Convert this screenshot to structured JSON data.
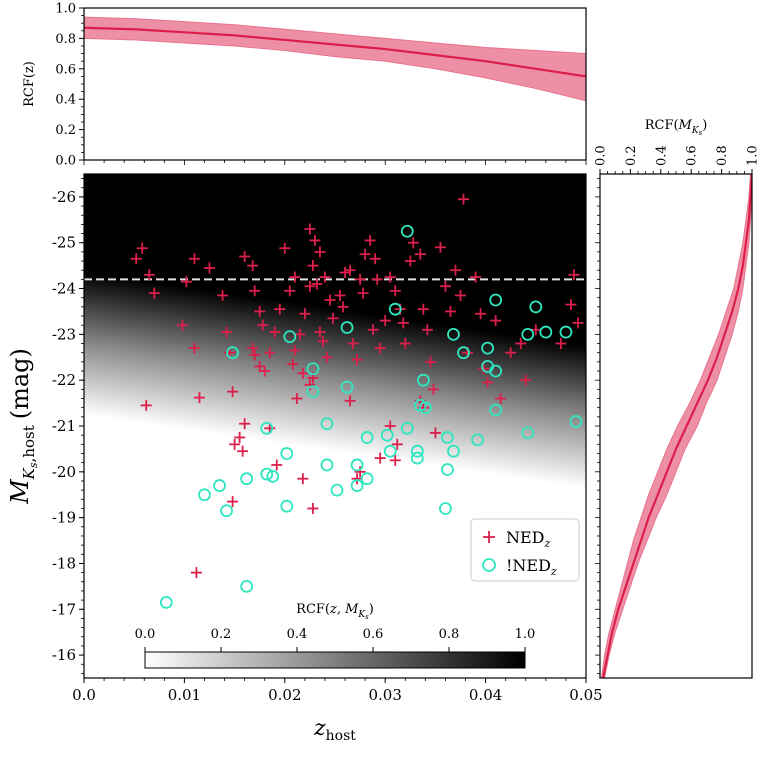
{
  "chart_data": [
    {
      "panel": "top-marginal",
      "type": "line",
      "ylabel": "RCF(z)",
      "xlim": [
        0.0,
        0.05
      ],
      "ylim": [
        0.0,
        1.0
      ],
      "yticks": [
        "0.0",
        "0.2",
        "0.4",
        "0.6",
        "0.8",
        "1.0"
      ],
      "x": [
        0.0,
        0.005,
        0.01,
        0.015,
        0.02,
        0.025,
        0.03,
        0.035,
        0.04,
        0.045,
        0.05
      ],
      "series": [
        {
          "values": [
            0.87,
            0.86,
            0.84,
            0.82,
            0.79,
            0.76,
            0.73,
            0.69,
            0.65,
            0.6,
            0.55
          ]
        }
      ],
      "band_upper": [
        0.94,
        0.93,
        0.91,
        0.89,
        0.86,
        0.83,
        0.8,
        0.77,
        0.74,
        0.72,
        0.7
      ],
      "band_lower": [
        0.8,
        0.79,
        0.77,
        0.75,
        0.72,
        0.68,
        0.65,
        0.6,
        0.54,
        0.47,
        0.39
      ],
      "line_color": "#dc1f4a",
      "band_color": "#e8738e"
    },
    {
      "panel": "right-marginal",
      "type": "line",
      "xlabel": "RCF(",
      "xlabel_var": "M",
      "xlabel_sub": "K",
      "xlabel_subsub": "s",
      "xlim": [
        0.0,
        1.0
      ],
      "xticks": [
        "0.0",
        "0.2",
        "0.4",
        "0.6",
        "0.8",
        "1.0"
      ],
      "y": [
        -26.5,
        -26.0,
        -25.5,
        -25.0,
        -24.5,
        -24.0,
        -23.5,
        -23.0,
        -22.5,
        -22.0,
        -21.5,
        -21.0,
        -20.5,
        -20.0,
        -19.5,
        -19.0,
        -18.5,
        -18.0,
        -17.5,
        -17.0,
        -16.5,
        -16.0,
        -15.5
      ],
      "series": [
        {
          "values": [
            1.0,
            0.99,
            0.98,
            0.96,
            0.94,
            0.91,
            0.87,
            0.82,
            0.77,
            0.71,
            0.64,
            0.57,
            0.5,
            0.44,
            0.38,
            0.32,
            0.27,
            0.22,
            0.17,
            0.12,
            0.08,
            0.05,
            0.02
          ]
        }
      ],
      "band_upper": [
        1.0,
        1.0,
        0.99,
        0.98,
        0.96,
        0.94,
        0.91,
        0.87,
        0.82,
        0.77,
        0.7,
        0.64,
        0.56,
        0.5,
        0.44,
        0.37,
        0.31,
        0.25,
        0.2,
        0.15,
        0.1,
        0.06,
        0.03
      ],
      "band_lower": [
        0.99,
        0.98,
        0.96,
        0.94,
        0.91,
        0.88,
        0.83,
        0.78,
        0.72,
        0.66,
        0.59,
        0.51,
        0.44,
        0.38,
        0.32,
        0.27,
        0.22,
        0.18,
        0.14,
        0.1,
        0.06,
        0.03,
        0.01
      ]
    },
    {
      "panel": "main",
      "type": "scatter",
      "xlabel": "z",
      "xlabel_sub": "host",
      "ylabel_var": "M",
      "ylabel_sub": "K",
      "ylabel_subsub": "s",
      "ylabel_sub2": ",host",
      "ylabel_unit": "(mag)",
      "xlim": [
        0.0,
        0.05
      ],
      "ylim": [
        -26.5,
        -15.5
      ],
      "xticks": [
        "0.0",
        "0.01",
        "0.02",
        "0.03",
        "0.04",
        "0.05"
      ],
      "yticks": [
        {
          "label": "-26",
          "value": -26
        },
        {
          "label": "-25",
          "value": -25
        },
        {
          "label": "-24",
          "value": -24
        },
        {
          "label": "-23",
          "value": -23
        },
        {
          "label": "-22",
          "value": -22
        },
        {
          "label": "-21",
          "value": -21
        },
        {
          "label": "-20",
          "value": -20
        },
        {
          "label": "-19",
          "value": -19
        },
        {
          "label": "-18",
          "value": -18
        },
        {
          "label": "-17",
          "value": -17
        },
        {
          "label": "-16",
          "value": -16
        }
      ],
      "dashed_line_y": -24.2,
      "background": "heatmap of RCF(z, M_Ks): black (1.0) for bright magnitudes, white (0.0) for faint, boundary sloping from about -21 at z=0 to about -23 at z=0.05",
      "colorbar": {
        "label": "RCF(",
        "label_var": "M",
        "label_sub": "K",
        "label_subsub": "s",
        "ticks": [
          "0.0",
          "0.2",
          "0.4",
          "0.6",
          "0.8",
          "1.0"
        ],
        "range": [
          0.0,
          1.0
        ]
      },
      "legend": {
        "placement": "lower-right",
        "items": [
          {
            "label": "NED",
            "sub": "z",
            "marker": "plus",
            "color": "#dc1f4a"
          },
          {
            "label": "!NED",
            "sub": "z",
            "marker": "circle",
            "color": "#2ee6c0"
          }
        ]
      },
      "series": [
        {
          "marker": "plus",
          "color": "#dc1f4a",
          "points": [
            [
              0.0052,
              -24.65
            ],
            [
              0.0058,
              -24.88
            ],
            [
              0.0065,
              -24.3
            ],
            [
              0.007,
              -23.9
            ],
            [
              0.0062,
              -21.45
            ],
            [
              0.0098,
              -23.2
            ],
            [
              0.0102,
              -24.15
            ],
            [
              0.011,
              -24.65
            ],
            [
              0.011,
              -22.7
            ],
            [
              0.0115,
              -21.62
            ],
            [
              0.0125,
              -24.45
            ],
            [
              0.0138,
              -23.85
            ],
            [
              0.0142,
              -23.05
            ],
            [
              0.0145,
              -22.6
            ],
            [
              0.0148,
              -21.75
            ],
            [
              0.015,
              -20.6
            ],
            [
              0.0155,
              -20.75
            ],
            [
              0.016,
              -21.05
            ],
            [
              0.0158,
              -20.45
            ],
            [
              0.0148,
              -19.35
            ],
            [
              0.016,
              -24.7
            ],
            [
              0.0168,
              -24.5
            ],
            [
              0.017,
              -23.95
            ],
            [
              0.0175,
              -23.5
            ],
            [
              0.0178,
              -23.2
            ],
            [
              0.0168,
              -22.7
            ],
            [
              0.017,
              -22.55
            ],
            [
              0.0175,
              -22.3
            ],
            [
              0.018,
              -22.2
            ],
            [
              0.019,
              -23.05
            ],
            [
              0.0185,
              -22.6
            ],
            [
              0.0195,
              -23.55
            ],
            [
              0.02,
              -24.88
            ],
            [
              0.0205,
              -23.95
            ],
            [
              0.021,
              -24.25
            ],
            [
              0.0215,
              -23.0
            ],
            [
              0.021,
              -22.65
            ],
            [
              0.0208,
              -22.35
            ],
            [
              0.0218,
              -22.15
            ],
            [
              0.0212,
              -21.6
            ],
            [
              0.022,
              -23.45
            ],
            [
              0.0225,
              -24.05
            ],
            [
              0.0225,
              -25.3
            ],
            [
              0.023,
              -25.05
            ],
            [
              0.0235,
              -24.8
            ],
            [
              0.0228,
              -24.5
            ],
            [
              0.0232,
              -24.1
            ],
            [
              0.024,
              -24.25
            ],
            [
              0.0245,
              -23.75
            ],
            [
              0.0248,
              -23.35
            ],
            [
              0.0235,
              -23.05
            ],
            [
              0.0238,
              -22.85
            ],
            [
              0.0242,
              -22.5
            ],
            [
              0.0228,
              -22.05
            ],
            [
              0.0225,
              -21.9
            ],
            [
              0.0255,
              -23.85
            ],
            [
              0.026,
              -24.35
            ],
            [
              0.0265,
              -24.4
            ],
            [
              0.0258,
              -23.6
            ],
            [
              0.0268,
              -22.8
            ],
            [
              0.0272,
              -22.45
            ],
            [
              0.0275,
              -24.2
            ],
            [
              0.0278,
              -23.9
            ],
            [
              0.028,
              -24.75
            ],
            [
              0.0285,
              -25.05
            ],
            [
              0.029,
              -24.65
            ],
            [
              0.0292,
              -24.2
            ],
            [
              0.0288,
              -23.1
            ],
            [
              0.0295,
              -22.7
            ],
            [
              0.03,
              -23.3
            ],
            [
              0.0305,
              -24.25
            ],
            [
              0.031,
              -23.95
            ],
            [
              0.0315,
              -23.55
            ],
            [
              0.0318,
              -23.25
            ],
            [
              0.032,
              -22.8
            ],
            [
              0.0325,
              -24.6
            ],
            [
              0.0328,
              -25.0
            ],
            [
              0.0335,
              -24.75
            ],
            [
              0.0338,
              -23.55
            ],
            [
              0.0342,
              -23.1
            ],
            [
              0.0345,
              -22.4
            ],
            [
              0.0348,
              -21.8
            ],
            [
              0.0335,
              -21.55
            ],
            [
              0.0338,
              -21.4
            ],
            [
              0.035,
              -20.85
            ],
            [
              0.0355,
              -24.9
            ],
            [
              0.036,
              -24.05
            ],
            [
              0.0365,
              -23.5
            ],
            [
              0.037,
              -24.4
            ],
            [
              0.0375,
              -23.85
            ],
            [
              0.0378,
              -25.95
            ],
            [
              0.0382,
              -22.6
            ],
            [
              0.039,
              -24.25
            ],
            [
              0.0395,
              -23.45
            ],
            [
              0.0398,
              -22.25
            ],
            [
              0.0402,
              -21.95
            ],
            [
              0.041,
              -23.3
            ],
            [
              0.0415,
              -21.6
            ],
            [
              0.0425,
              -22.6
            ],
            [
              0.0435,
              -22.8
            ],
            [
              0.044,
              -22.0
            ],
            [
              0.045,
              -23.1
            ],
            [
              0.0475,
              -22.8
            ],
            [
              0.0485,
              -23.65
            ],
            [
              0.0488,
              -24.3
            ],
            [
              0.0492,
              -23.25
            ],
            [
              0.0305,
              -21.0
            ],
            [
              0.0312,
              -20.6
            ],
            [
              0.031,
              -20.25
            ],
            [
              0.0295,
              -20.3
            ],
            [
              0.0275,
              -20.0
            ],
            [
              0.0272,
              -19.85
            ],
            [
              0.0228,
              -19.2
            ],
            [
              0.0218,
              -19.85
            ],
            [
              0.0112,
              -17.8
            ],
            [
              0.0185,
              -20.95
            ],
            [
              0.0192,
              -20.15
            ],
            [
              0.0265,
              -21.55
            ]
          ]
        },
        {
          "marker": "circle",
          "color": "#2ee6c0",
          "points": [
            [
              0.0322,
              -25.25
            ],
            [
              0.031,
              -23.55
            ],
            [
              0.0262,
              -23.15
            ],
            [
              0.0148,
              -22.6
            ],
            [
              0.0205,
              -22.95
            ],
            [
              0.0228,
              -22.25
            ],
            [
              0.0228,
              -21.75
            ],
            [
              0.0262,
              -21.85
            ],
            [
              0.0338,
              -22.0
            ],
            [
              0.0368,
              -23.0
            ],
            [
              0.0378,
              -22.6
            ],
            [
              0.041,
              -23.75
            ],
            [
              0.045,
              -23.6
            ],
            [
              0.0442,
              -23.0
            ],
            [
              0.046,
              -23.05
            ],
            [
              0.048,
              -23.05
            ],
            [
              0.0402,
              -22.7
            ],
            [
              0.0402,
              -22.3
            ],
            [
              0.041,
              -22.2
            ],
            [
              0.041,
              -21.35
            ],
            [
              0.0335,
              -21.45
            ],
            [
              0.034,
              -21.4
            ],
            [
              0.0322,
              -20.95
            ],
            [
              0.0305,
              -20.45
            ],
            [
              0.0332,
              -20.45
            ],
            [
              0.0332,
              -20.3
            ],
            [
              0.0302,
              -20.8
            ],
            [
              0.0282,
              -20.75
            ],
            [
              0.0242,
              -21.05
            ],
            [
              0.0362,
              -20.75
            ],
            [
              0.0368,
              -20.45
            ],
            [
              0.0392,
              -20.7
            ],
            [
              0.0442,
              -20.85
            ],
            [
              0.049,
              -21.1
            ],
            [
              0.0362,
              -20.05
            ],
            [
              0.036,
              -19.2
            ],
            [
              0.0272,
              -20.15
            ],
            [
              0.0242,
              -20.15
            ],
            [
              0.0272,
              -19.7
            ],
            [
              0.0282,
              -19.85
            ],
            [
              0.0252,
              -19.6
            ],
            [
              0.0202,
              -20.4
            ],
            [
              0.0182,
              -19.95
            ],
            [
              0.0188,
              -19.9
            ],
            [
              0.0162,
              -19.85
            ],
            [
              0.0182,
              -20.95
            ],
            [
              0.0202,
              -19.25
            ],
            [
              0.0142,
              -19.15
            ],
            [
              0.0135,
              -19.7
            ],
            [
              0.012,
              -19.5
            ],
            [
              0.0162,
              -17.5
            ],
            [
              0.0082,
              -17.15
            ]
          ]
        }
      ]
    }
  ]
}
